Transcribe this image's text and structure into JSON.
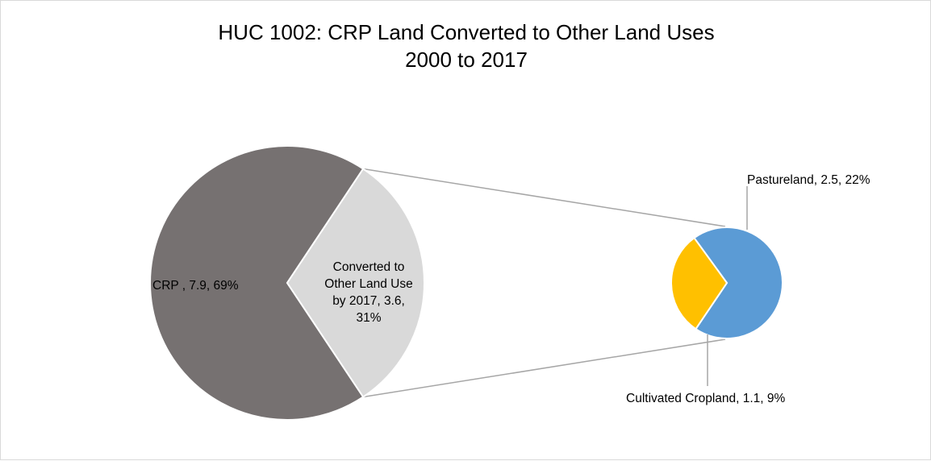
{
  "chart_data": {
    "type": "pie",
    "subtype": "pie-of-pie",
    "title": "HUC 1002: CRP Land Converted to Other Land Uses",
    "subtitle": "2000 to 2017",
    "primary": {
      "slices": [
        {
          "key": "crp",
          "label_lines": [
            "CRP , 7.9, 69%"
          ],
          "value": 7.9,
          "percent": 69,
          "color": "#767171"
        },
        {
          "key": "converted",
          "label_lines": [
            "Converted to",
            "Other Land Use",
            "by 2017, 3.6,",
            "31%"
          ],
          "value": 3.6,
          "percent": 31,
          "color": "#d9d9d9"
        }
      ]
    },
    "secondary": {
      "slices": [
        {
          "key": "pastureland",
          "label_lines": [
            "Pastureland, 2.5, 22%"
          ],
          "value": 2.5,
          "percent": 22,
          "color": "#5b9bd5"
        },
        {
          "key": "cultivated",
          "label_lines": [
            "Cultivated Cropland, 1.1, 9%"
          ],
          "value": 1.1,
          "percent": 9,
          "color": "#ffc000"
        }
      ]
    },
    "connector_color": "#a6a6a6",
    "legend": "none"
  }
}
